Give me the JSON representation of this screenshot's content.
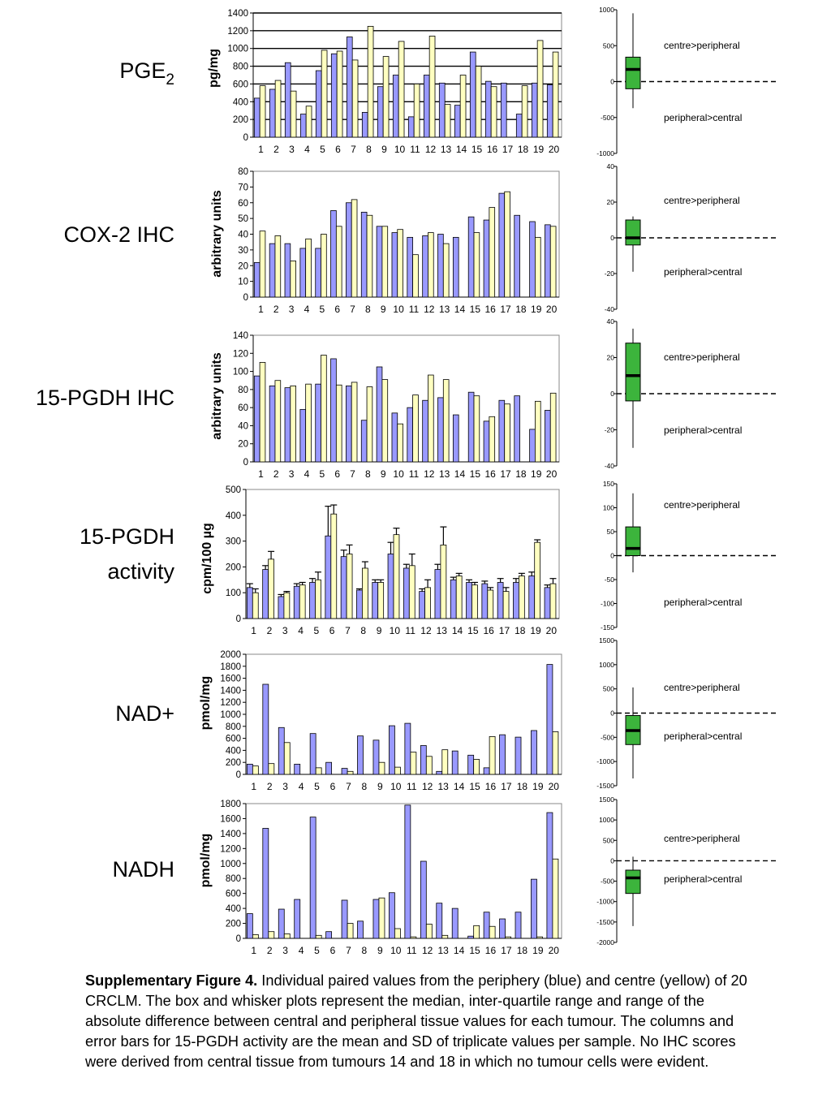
{
  "colors": {
    "periphery": "#9999ff",
    "centre": "#ffffc0",
    "box": "#3cb43c",
    "outline": "#000000"
  },
  "caption": {
    "lead": "Supplementary Figure 4.",
    "text": " Individual paired values from the periphery (blue) and centre (yellow) of 20 CRCLM. The box and whisker plots represent the median, inter-quartile range and range of the absolute difference between central and peripheral tissue values for each tumour. The columns and error bars for 15-PGDH activity are the mean and SD of triplicate values per sample. No IHC scores were derived from central tissue from tumours 14 and 18 in which no tumour cells were evident."
  },
  "chart_data": [
    {
      "type": "bar",
      "row_label": [
        "PGE",
        "2"
      ],
      "title": "",
      "ylabel": "pg/mg",
      "xlabel": "",
      "ylim": [
        0,
        1400
      ],
      "yticks": [
        0,
        200,
        400,
        600,
        800,
        1000,
        1200,
        1400
      ],
      "grid": true,
      "categories": [
        "1",
        "2",
        "3",
        "4",
        "5",
        "6",
        "7",
        "8",
        "9",
        "10",
        "11",
        "12",
        "13",
        "14",
        "15",
        "16",
        "17",
        "18",
        "19",
        "20"
      ],
      "series": [
        {
          "values": [
            440,
            540,
            840,
            260,
            750,
            940,
            1130,
            280,
            570,
            700,
            230,
            700,
            610,
            360,
            960,
            630,
            610,
            260,
            610,
            590
          ]
        },
        {
          "values": [
            580,
            640,
            520,
            350,
            980,
            970,
            870,
            1250,
            910,
            1080,
            600,
            1140,
            370,
            700,
            800,
            570,
            0,
            580,
            1090,
            960
          ]
        }
      ],
      "box": {
        "ylim": [
          -1000,
          1000
        ],
        "yticks": [
          -1000,
          -500,
          0,
          500,
          1000
        ],
        "min": -370,
        "q1": -100,
        "median": 170,
        "q3": 340,
        "max": 950,
        "upper_label": "centre>peripheral",
        "lower_label": "peripheral>central"
      }
    },
    {
      "type": "bar",
      "row_label": [
        "COX-2 IHC"
      ],
      "title": "",
      "ylabel": "arbitrary units",
      "xlabel": "",
      "ylim": [
        0,
        80
      ],
      "yticks": [
        0,
        10,
        20,
        30,
        40,
        50,
        60,
        70,
        80
      ],
      "grid": false,
      "categories": [
        "1",
        "2",
        "3",
        "4",
        "5",
        "6",
        "7",
        "8",
        "9",
        "10",
        "11",
        "12",
        "13",
        "14",
        "15",
        "16",
        "17",
        "18",
        "19",
        "20"
      ],
      "series": [
        {
          "values": [
            22,
            34,
            34,
            31,
            31,
            55,
            60,
            54,
            45,
            41,
            38,
            39,
            40,
            38,
            51,
            49,
            66,
            52,
            48,
            46
          ]
        },
        {
          "values": [
            42,
            39,
            23,
            37,
            40,
            45,
            62,
            52,
            45,
            43,
            27,
            41,
            34,
            0,
            41,
            57,
            67,
            0,
            38,
            45
          ]
        }
      ],
      "box": {
        "ylim": [
          -40,
          40
        ],
        "yticks": [
          -40,
          -20,
          0,
          20,
          40
        ],
        "min": -19,
        "q1": -4,
        "median": 0,
        "q3": 10,
        "max": 12,
        "upper_label": "centre>peripheral",
        "lower_label": "peripheral>central"
      }
    },
    {
      "type": "bar",
      "row_label": [
        "15-PGDH IHC"
      ],
      "title": "",
      "ylabel": "arbitrary units",
      "xlabel": "",
      "ylim": [
        0,
        140
      ],
      "yticks": [
        0,
        20,
        40,
        60,
        80,
        100,
        120,
        140
      ],
      "grid": false,
      "categories": [
        "1",
        "2",
        "3",
        "4",
        "5",
        "6",
        "7",
        "8",
        "9",
        "10",
        "11",
        "12",
        "13",
        "14",
        "15",
        "16",
        "17",
        "18",
        "19",
        "20"
      ],
      "series": [
        {
          "values": [
            95,
            84,
            82,
            58,
            86,
            114,
            84,
            46,
            105,
            54,
            60,
            68,
            71,
            52,
            77,
            45,
            68,
            73,
            36,
            57
          ]
        },
        {
          "values": [
            110,
            90,
            84,
            86,
            118,
            85,
            88,
            83,
            91,
            42,
            74,
            96,
            91,
            0,
            73,
            50,
            64,
            0,
            67,
            76
          ]
        }
      ],
      "box": {
        "ylim": [
          -40,
          40
        ],
        "yticks": [
          -40,
          -20,
          0,
          20,
          40
        ],
        "min": -30,
        "q1": -4,
        "median": 10,
        "q3": 28,
        "max": 36,
        "upper_label": "centre>peripheral",
        "lower_label": "peripheral>central"
      }
    },
    {
      "type": "bar",
      "row_label": [
        "15-PGDH",
        "activity"
      ],
      "title": "",
      "ylabel": "cpm/100 µg",
      "xlabel": "",
      "ylim": [
        0,
        500
      ],
      "yticks": [
        0,
        100,
        200,
        300,
        400,
        500
      ],
      "grid": false,
      "categories": [
        "1",
        "2",
        "3",
        "4",
        "5",
        "6",
        "7",
        "8",
        "9",
        "10",
        "11",
        "12",
        "13",
        "14",
        "15",
        "16",
        "17",
        "18",
        "19",
        "20"
      ],
      "series": [
        {
          "values": [
            120,
            190,
            85,
            125,
            140,
            320,
            240,
            110,
            140,
            250,
            195,
            105,
            190,
            150,
            140,
            135,
            140,
            140,
            165,
            120
          ],
          "errors": [
            15,
            15,
            8,
            10,
            15,
            115,
            25,
            5,
            10,
            45,
            15,
            10,
            20,
            10,
            10,
            10,
            15,
            15,
            15,
            10
          ]
        },
        {
          "values": [
            100,
            230,
            100,
            130,
            150,
            405,
            250,
            195,
            140,
            325,
            205,
            120,
            285,
            165,
            130,
            110,
            105,
            165,
            295,
            135
          ],
          "errors": [
            15,
            30,
            5,
            10,
            30,
            35,
            35,
            25,
            10,
            25,
            45,
            30,
            70,
            10,
            10,
            10,
            15,
            10,
            10,
            20
          ]
        }
      ],
      "box": {
        "ylim": [
          -150,
          150
        ],
        "yticks": [
          -150,
          -100,
          -50,
          0,
          50,
          100,
          150
        ],
        "min": -35,
        "q1": 0,
        "median": 15,
        "q3": 60,
        "max": 130,
        "upper_label": "centre>peripheral",
        "lower_label": "peripheral>central"
      }
    },
    {
      "type": "bar",
      "row_label": [
        "NAD+"
      ],
      "title": "",
      "ylabel": "pmol/mg",
      "xlabel": "",
      "ylim": [
        0,
        2000
      ],
      "yticks": [
        0,
        200,
        400,
        600,
        800,
        1000,
        1200,
        1400,
        1600,
        1800,
        2000
      ],
      "grid": false,
      "categories": [
        "1",
        "2",
        "3",
        "4",
        "5",
        "6",
        "7",
        "8",
        "9",
        "10",
        "11",
        "12",
        "13",
        "14",
        "15",
        "16",
        "17",
        "18",
        "19",
        "20"
      ],
      "series": [
        {
          "values": [
            170,
            1500,
            780,
            170,
            680,
            200,
            100,
            640,
            570,
            810,
            850,
            480,
            50,
            390,
            320,
            110,
            660,
            620,
            730,
            1830
          ]
        },
        {
          "values": [
            140,
            180,
            530,
            0,
            110,
            0,
            50,
            0,
            200,
            120,
            370,
            300,
            410,
            0,
            250,
            630,
            0,
            0,
            0,
            710
          ]
        }
      ],
      "box": {
        "ylim": [
          -1500,
          1500
        ],
        "yticks": [
          -1500,
          -1000,
          -500,
          0,
          500,
          1000,
          1500
        ],
        "min": -1350,
        "q1": -650,
        "median": -360,
        "q3": -50,
        "max": 530,
        "upper_label": "centre>peripheral",
        "lower_label": "peripheral>central"
      }
    },
    {
      "type": "bar",
      "row_label": [
        "NADH"
      ],
      "title": "",
      "ylabel": "pmol/mg",
      "xlabel": "",
      "ylim": [
        0,
        1800
      ],
      "yticks": [
        0,
        200,
        400,
        600,
        800,
        1000,
        1200,
        1400,
        1600,
        1800
      ],
      "grid": false,
      "categories": [
        "1",
        "2",
        "3",
        "4",
        "5",
        "6",
        "7",
        "8",
        "9",
        "10",
        "11",
        "12",
        "13",
        "14",
        "15",
        "16",
        "17",
        "18",
        "19",
        "20"
      ],
      "series": [
        {
          "values": [
            330,
            1470,
            390,
            520,
            1620,
            90,
            510,
            230,
            520,
            610,
            1780,
            1030,
            470,
            400,
            30,
            350,
            260,
            350,
            790,
            1680
          ]
        },
        {
          "values": [
            50,
            90,
            60,
            0,
            40,
            0,
            200,
            0,
            540,
            130,
            20,
            190,
            40,
            0,
            170,
            160,
            20,
            0,
            20,
            1060
          ]
        }
      ],
      "box": {
        "ylim": [
          -2000,
          1500
        ],
        "yticks": [
          -2000,
          -1500,
          -1000,
          -500,
          0,
          500,
          1000,
          1500
        ],
        "min": -1600,
        "q1": -800,
        "median": -420,
        "q3": -230,
        "max": 100,
        "upper_label": "centre>peripheral",
        "lower_label": "peripheral>central"
      }
    }
  ]
}
